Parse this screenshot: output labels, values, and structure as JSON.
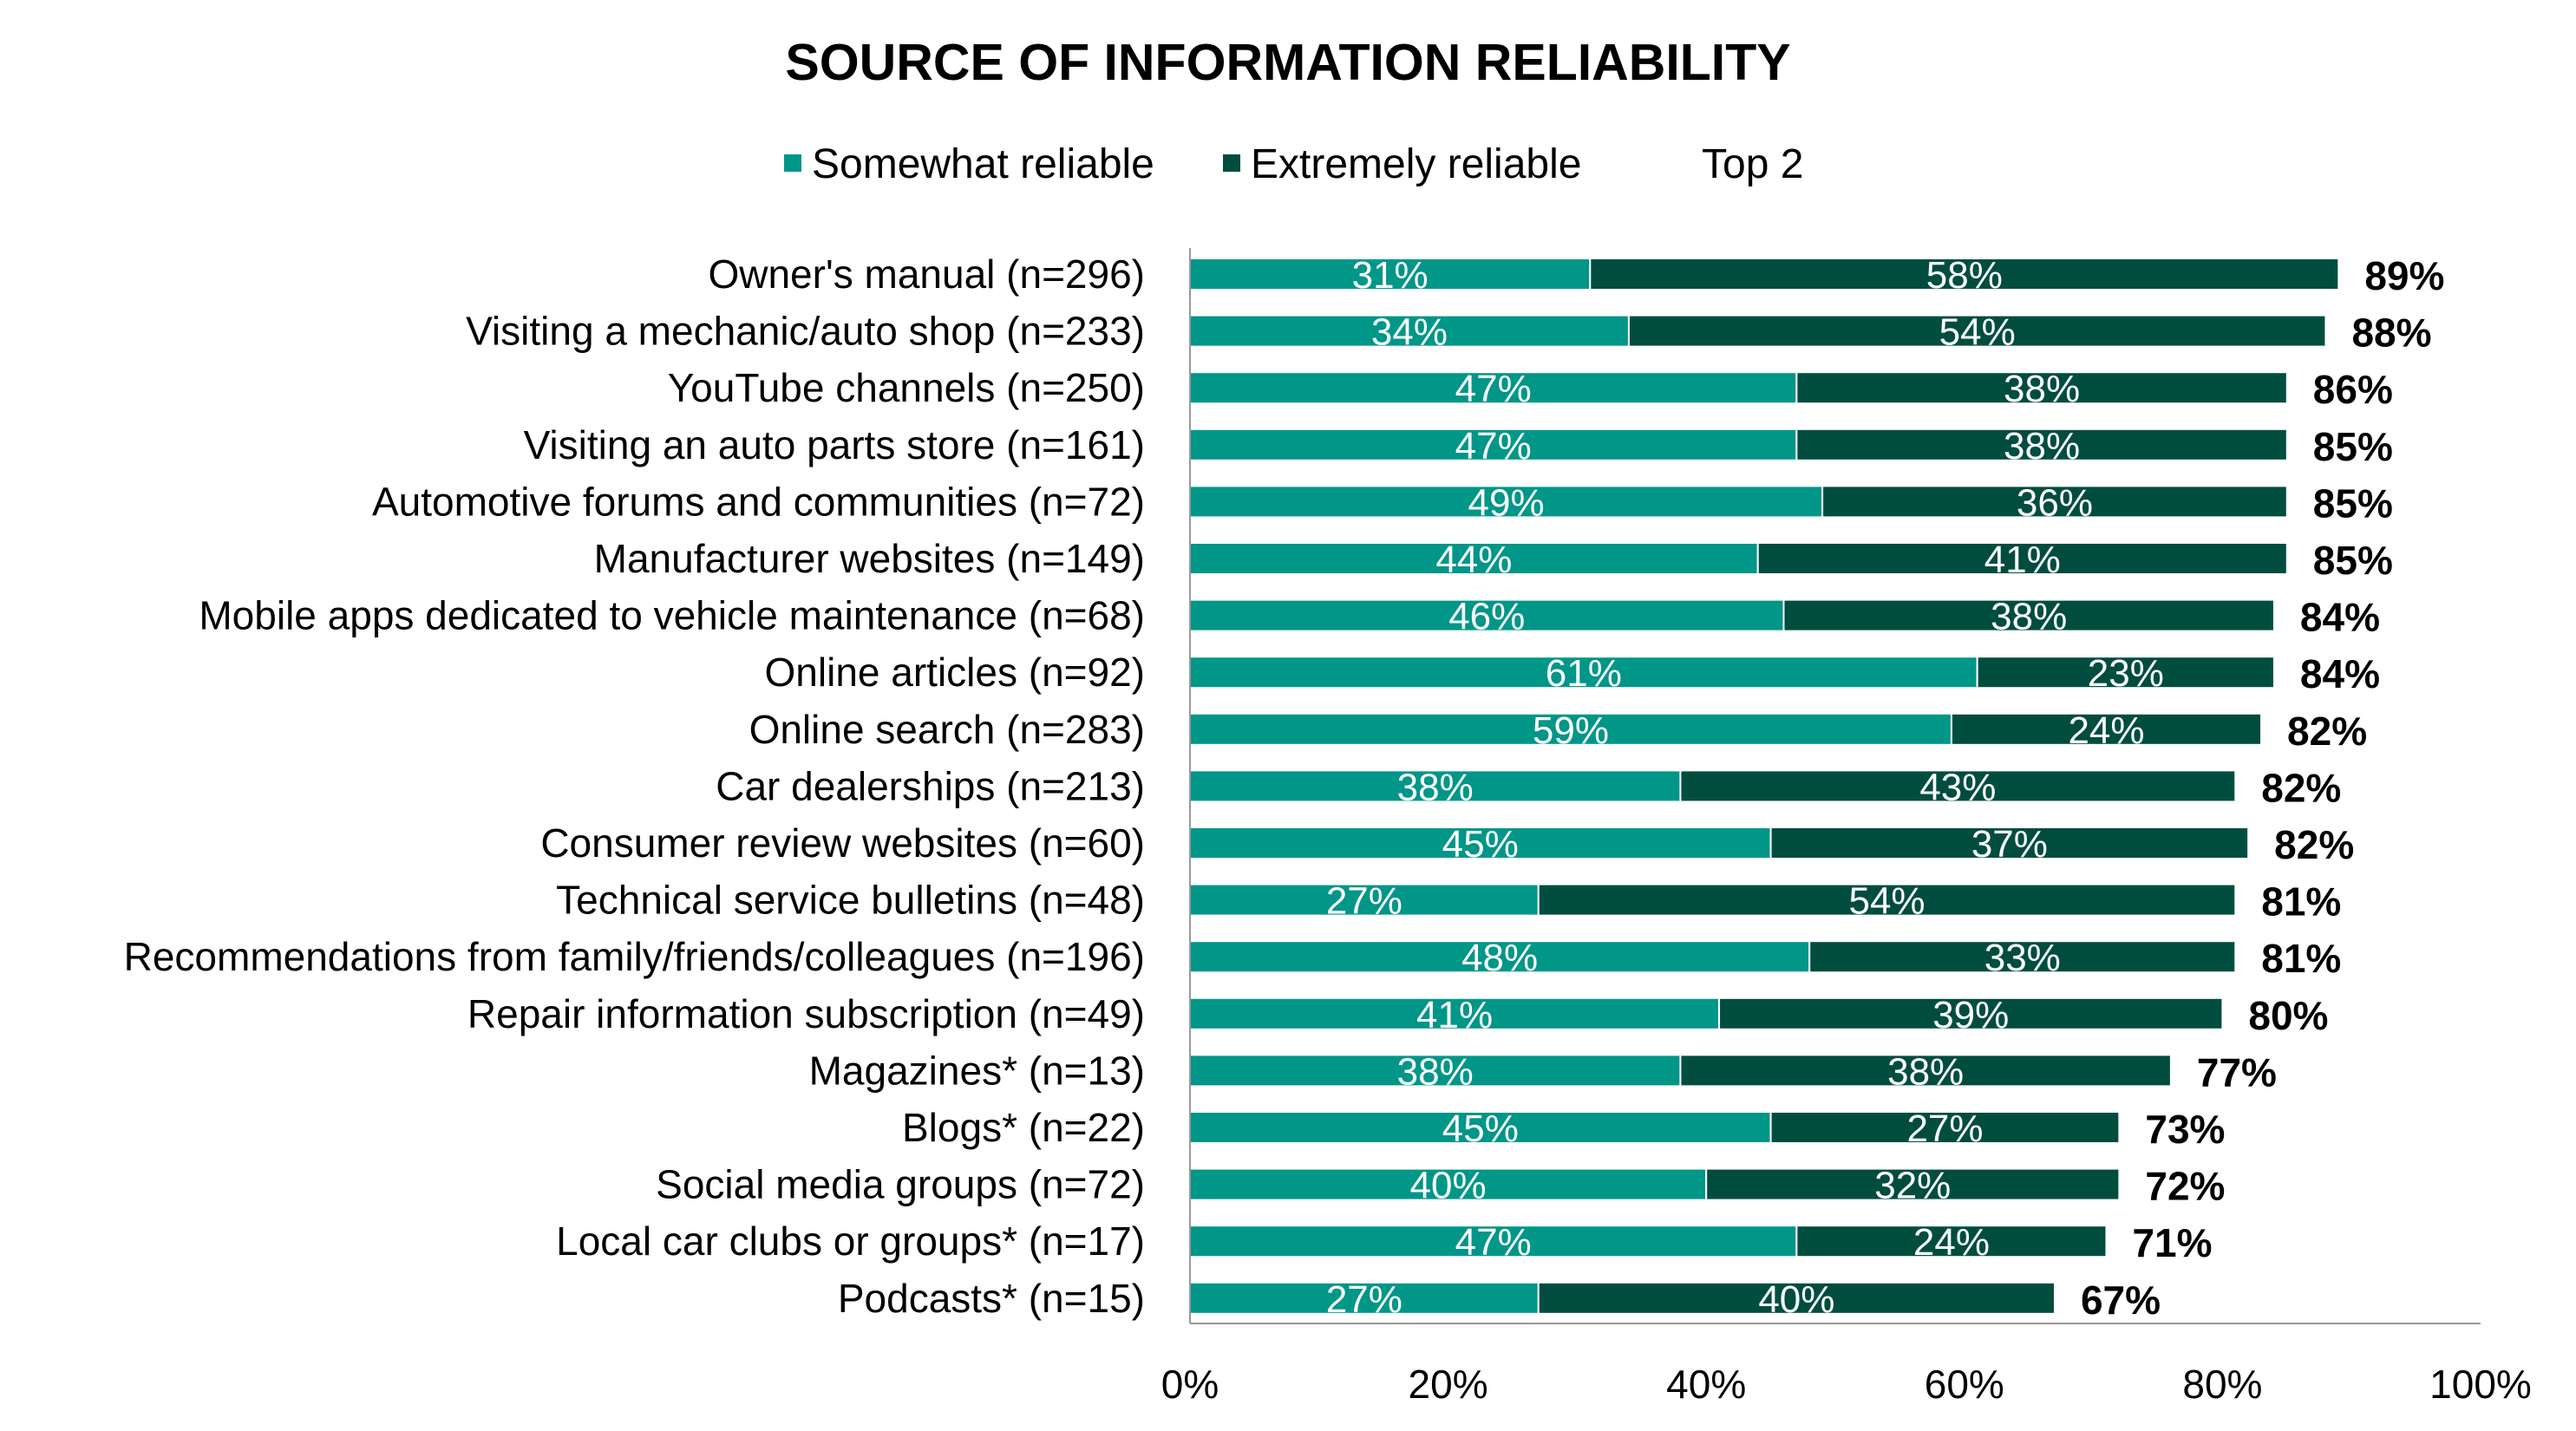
{
  "chart_data": {
    "type": "bar",
    "orientation": "horizontal",
    "stacked": true,
    "title": "SOURCE OF INFORMATION RELIABILITY",
    "legend": {
      "position": "top",
      "entries": [
        {
          "label": "Somewhat reliable",
          "color": "#009688"
        },
        {
          "label": "Extremely reliable",
          "color": "#004D40"
        },
        {
          "label": "Top 2",
          "color": ""
        }
      ]
    },
    "categories": [
      "Owner's manual (n=296)",
      "Visiting a mechanic/auto shop (n=233)",
      "YouTube channels (n=250)",
      "Visiting an auto parts store (n=161)",
      "Automotive forums and communities (n=72)",
      "Manufacturer websites (n=149)",
      "Mobile apps dedicated to vehicle maintenance (n=68)",
      "Online articles (n=92)",
      "Online search (n=283)",
      "Car dealerships (n=213)",
      "Consumer review websites (n=60)",
      "Technical service bulletins (n=48)",
      "Recommendations from family/friends/colleagues (n=196)",
      "Repair information subscription (n=49)",
      "Magazines* (n=13)",
      "Blogs* (n=22)",
      "Social media groups (n=72)",
      "Local car clubs or groups* (n=17)",
      "Podcasts* (n=15)"
    ],
    "series": [
      {
        "name": "Somewhat reliable",
        "color": "#009688",
        "values": [
          31,
          34,
          47,
          47,
          49,
          44,
          46,
          61,
          59,
          38,
          45,
          27,
          48,
          41,
          38,
          45,
          40,
          47,
          27
        ]
      },
      {
        "name": "Extremely reliable",
        "color": "#004D40",
        "values": [
          58,
          54,
          38,
          38,
          36,
          41,
          38,
          23,
          24,
          43,
          37,
          54,
          33,
          39,
          38,
          27,
          32,
          24,
          40
        ]
      }
    ],
    "totals_name": "Top 2",
    "totals": [
      89,
      88,
      86,
      85,
      85,
      85,
      84,
      84,
      82,
      82,
      82,
      81,
      81,
      80,
      77,
      73,
      72,
      71,
      67
    ],
    "value_suffix": "%",
    "xlim": [
      0,
      100
    ],
    "xticks": [
      0,
      20,
      40,
      60,
      80,
      100
    ],
    "xtick_labels": [
      "0%",
      "20%",
      "40%",
      "60%",
      "80%",
      "100%"
    ],
    "grid": false
  }
}
